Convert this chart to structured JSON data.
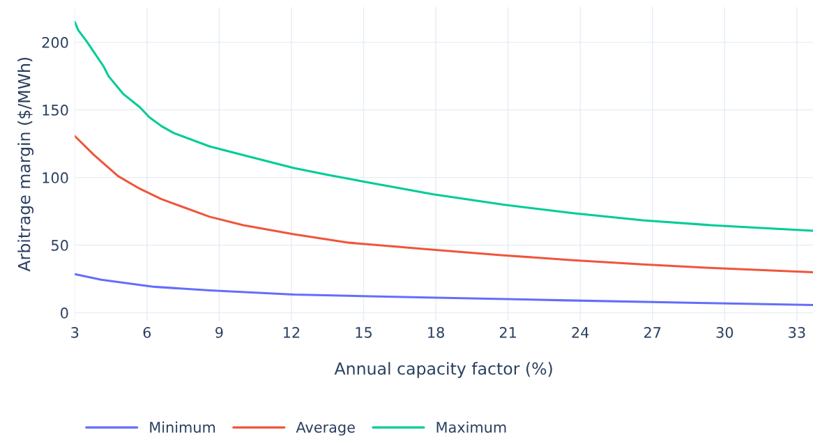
{
  "chart_data": {
    "type": "line",
    "xlabel": "Annual capacity factor (%)",
    "ylabel": "Arbitrage margin ($/MWh)",
    "xlim": [
      3,
      33.67
    ],
    "ylim": [
      -6,
      226
    ],
    "xticks": [
      3,
      6,
      9,
      12,
      15,
      18,
      21,
      24,
      27,
      30,
      33
    ],
    "yticks": [
      0,
      50,
      100,
      150,
      200
    ],
    "grid": true,
    "legend": "bottom",
    "line_style": "solid",
    "series": [
      {
        "name": "Minimum",
        "color": "#636efa",
        "x": [
          3,
          4.1,
          6.3,
          8.6,
          12.1,
          17.3,
          23.1,
          28.9,
          33.67
        ],
        "values": [
          28.5,
          24.4,
          19.2,
          16.6,
          13.5,
          11.4,
          9.3,
          7.3,
          5.7
        ]
      },
      {
        "name": "Average",
        "color": "#ef553b",
        "x": [
          3,
          3.8,
          4.8,
          5.7,
          6.6,
          7.4,
          8.6,
          10,
          12.1,
          14.4,
          17.9,
          20.8,
          23.7,
          26.6,
          29.4,
          33.67
        ],
        "values": [
          130.6,
          116.6,
          101,
          91.7,
          84,
          78.8,
          71,
          64.8,
          58,
          51.8,
          46.6,
          42.5,
          38.9,
          35.8,
          33.2,
          30
        ]
      },
      {
        "name": "Maximum",
        "color": "#00cc96",
        "x": [
          3,
          3.14,
          3.5,
          4.2,
          4.4,
          5,
          5.7,
          6.1,
          6.6,
          7.1,
          8.6,
          10,
          12.1,
          13.5,
          15,
          17.9,
          20.8,
          23.7,
          26.6,
          29.4,
          33.67
        ],
        "values": [
          215,
          209,
          200.5,
          182,
          175,
          162,
          152,
          144.5,
          138,
          133,
          123,
          116.6,
          107,
          102,
          97,
          87.6,
          80,
          73.6,
          68.4,
          64.8,
          60.6
        ]
      }
    ]
  }
}
